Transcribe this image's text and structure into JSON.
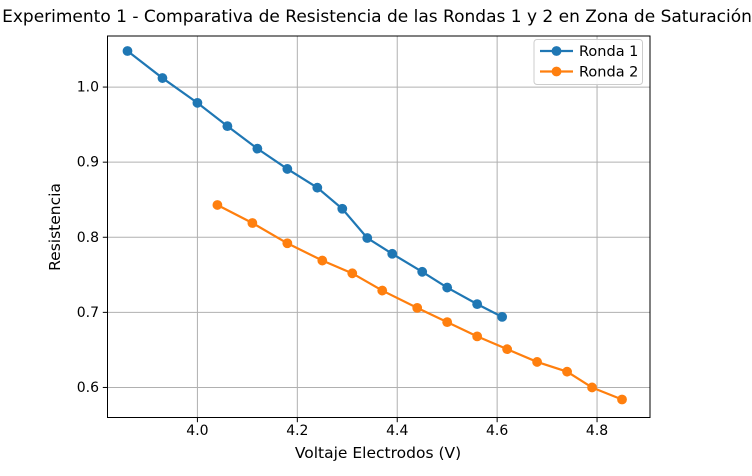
{
  "chart_data": {
    "type": "line",
    "title": "Experimento 1 - Comparativa de Resistencia de las Rondas 1 y 2 en Zona de Saturación",
    "xlabel": "Voltaje Electrodos (V)",
    "ylabel": "Resistencia",
    "xlim": [
      3.82,
      4.906
    ],
    "ylim": [
      0.56,
      1.068
    ],
    "xticks": [
      4.0,
      4.2,
      4.4,
      4.6,
      4.8
    ],
    "yticks": [
      0.6,
      0.7,
      0.8,
      0.9,
      1.0
    ],
    "grid": true,
    "legend_position": "upper right",
    "series": [
      {
        "name": "Ronda 1",
        "color": "#1f77b4",
        "marker": "circle",
        "x": [
          3.86,
          3.93,
          4.0,
          4.06,
          4.12,
          4.18,
          4.24,
          4.29,
          4.34,
          4.39,
          4.45,
          4.5,
          4.56,
          4.61
        ],
        "y": [
          1.048,
          1.012,
          0.979,
          0.948,
          0.918,
          0.891,
          0.866,
          0.838,
          0.799,
          0.778,
          0.754,
          0.733,
          0.711,
          0.694
        ]
      },
      {
        "name": "Ronda 2",
        "color": "#ff7f0e",
        "marker": "circle",
        "x": [
          4.04,
          4.11,
          4.18,
          4.25,
          4.31,
          4.37,
          4.44,
          4.5,
          4.56,
          4.62,
          4.68,
          4.74,
          4.79,
          4.85
        ],
        "y": [
          0.843,
          0.819,
          0.792,
          0.769,
          0.752,
          0.729,
          0.706,
          0.687,
          0.668,
          0.651,
          0.634,
          0.621,
          0.6,
          0.584
        ]
      }
    ]
  },
  "colors": {
    "grid": "#b0b0b0",
    "spine": "#000000",
    "text": "#000000",
    "background": "#ffffff",
    "legend_border": "#cccccc"
  }
}
